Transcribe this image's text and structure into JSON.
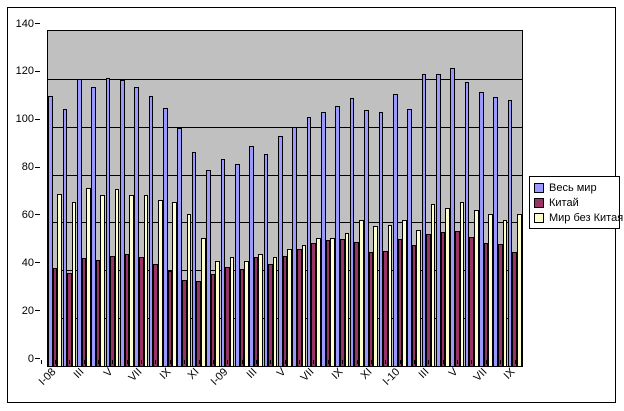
{
  "chart_data": {
    "type": "bar",
    "title": "",
    "xlabel": "",
    "ylabel": "",
    "ylim": [
      0,
      140
    ],
    "yticks": [
      0,
      20,
      40,
      60,
      80,
      100,
      120,
      140
    ],
    "grid": true,
    "legend_position": "right",
    "plot_bg_color": "#C0C0C0",
    "gridline_color": "#000000",
    "bar_border_color": "#000000",
    "categories": [
      "I-08",
      "",
      "III",
      "",
      "V",
      "",
      "VII",
      "",
      "IX",
      "",
      "XI",
      "",
      "I-09",
      "",
      "III",
      "",
      "V",
      "",
      "VII",
      "",
      "IX",
      "",
      "XI",
      "",
      "I-10",
      "",
      "III",
      "",
      "V",
      "",
      "VII",
      "",
      "IX"
    ],
    "series": [
      {
        "name": "Весь мир",
        "semantic": "world",
        "color": "#9999FF",
        "values": [
          113,
          107.5,
          120,
          116.5,
          120.5,
          119.5,
          116.5,
          113,
          108,
          99.5,
          89.5,
          82,
          86.5,
          84.5,
          92,
          88.5,
          96,
          100,
          104,
          106,
          108.5,
          112,
          107,
          106,
          113.5,
          107.5,
          122,
          122,
          124.5,
          118.5,
          114.5,
          112.5,
          111
        ]
      },
      {
        "name": "Китай",
        "semantic": "china",
        "color": "#993366",
        "values": [
          41,
          39,
          45,
          44.5,
          46,
          47,
          45.5,
          42.5,
          39.5,
          36,
          35.5,
          38.5,
          41.5,
          40.5,
          45.5,
          42.5,
          46,
          49,
          51.5,
          52.5,
          53,
          52,
          47.5,
          48,
          53,
          50.5,
          55,
          56,
          56.5,
          54,
          51.5,
          51,
          47.5
        ]
      },
      {
        "name": "Мир без Китая",
        "semantic": "world-ex-china",
        "color": "#FFFFCC",
        "values": [
          72,
          68.5,
          74.5,
          71.5,
          74,
          71.5,
          71.5,
          69.5,
          68.5,
          63.5,
          53.5,
          44,
          45.5,
          44,
          47,
          45.5,
          49,
          50.5,
          53.5,
          53.5,
          55.5,
          61,
          58.5,
          59,
          61,
          57,
          67.5,
          66,
          68.5,
          65,
          63.5,
          61,
          63.5
        ]
      }
    ]
  }
}
